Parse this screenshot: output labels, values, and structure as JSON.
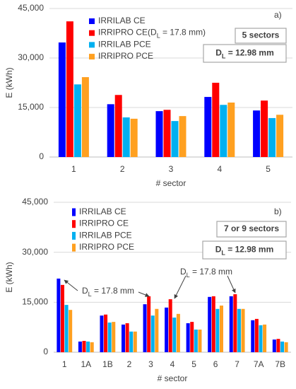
{
  "chart_data": [
    {
      "type": "bar",
      "panel_label": "a)",
      "ylabel": "E (kWh)",
      "xlabel": "# sector",
      "grid": true,
      "legend": "upper left",
      "ylim": [
        0,
        45000
      ],
      "yticks": [
        0,
        {
          "value": 15000,
          "label": "15,000"
        },
        {
          "value": 30000,
          "label": "30,000"
        },
        {
          "value": 45000,
          "label": "45,000"
        }
      ],
      "categories": [
        "1",
        "2",
        "3",
        "4",
        "5"
      ],
      "series": [
        {
          "name": "IRRILAB CE",
          "color": "#0000ff",
          "values": [
            34700,
            16000,
            13900,
            18200,
            14100
          ]
        },
        {
          "name": "IRRIPRO CE",
          "color": "#ff0000",
          "values": [
            41100,
            18800,
            14300,
            22500,
            17100
          ]
        },
        {
          "name": "IRRILAB PCE",
          "color": "#00b0f0",
          "values": [
            22000,
            12000,
            10900,
            15800,
            11800
          ]
        },
        {
          "name": "IRRIPRO PCE",
          "color": "#ffa020",
          "values": [
            24200,
            11600,
            12400,
            16500,
            12800
          ]
        }
      ],
      "legend_note": [
        {
          "text": "(D"
        },
        {
          "text": "L",
          "sub": true
        },
        {
          "text": " = 17.8 mm)"
        }
      ],
      "boxes": [
        [
          {
            "text": "5 sectors"
          }
        ],
        [
          {
            "text": "D"
          },
          {
            "text": "L",
            "sub": true
          },
          {
            "text": " = 12.98 mm"
          }
        ]
      ]
    },
    {
      "type": "bar",
      "panel_label": "b)",
      "ylabel": "E (kWh)",
      "xlabel": "# sector",
      "grid": true,
      "legend": "upper left",
      "ylim": [
        0,
        45000
      ],
      "yticks": [
        0,
        {
          "value": 15000,
          "label": "15,000"
        },
        {
          "value": 30000,
          "label": "30,000"
        },
        {
          "value": 45000,
          "label": "45,000"
        }
      ],
      "categories": [
        "1",
        "1A",
        "1B",
        "2",
        "3",
        "4",
        "5",
        "6",
        "7",
        "7A",
        "7B"
      ],
      "series": [
        {
          "name": "IRRILAB CE",
          "color": "#0000ff",
          "values": [
            22100,
            3200,
            11000,
            8300,
            14400,
            13400,
            8700,
            16600,
            16800,
            9600,
            3800
          ]
        },
        {
          "name": "IRRIPRO CE",
          "color": "#ff0000",
          "values": [
            20200,
            3400,
            11300,
            8700,
            16800,
            15900,
            9100,
            16800,
            17400,
            10000,
            4000
          ]
        },
        {
          "name": "IRRILAB PCE",
          "color": "#00b0f0",
          "values": [
            14200,
            3200,
            8900,
            6200,
            11000,
            10400,
            6800,
            13000,
            13000,
            8100,
            3200
          ]
        },
        {
          "name": "IRRIPRO PCE",
          "color": "#ffa020",
          "values": [
            12700,
            3000,
            9100,
            6200,
            13000,
            11500,
            6800,
            14000,
            13000,
            8300,
            3000
          ]
        }
      ],
      "boxes": [
        [
          {
            "text": "7 or 9 sectors"
          }
        ],
        [
          {
            "text": "D"
          },
          {
            "text": "L",
            "sub": true
          },
          {
            "text": " = 12.98 mm"
          }
        ]
      ],
      "callouts": [
        [
          {
            "text": "D"
          },
          {
            "text": "L",
            "sub": true
          },
          {
            "text": " = 17.8 mm"
          }
        ],
        [
          {
            "text": "D"
          },
          {
            "text": "L",
            "sub": true
          },
          {
            "text": " = 17.8 mm"
          }
        ]
      ]
    }
  ]
}
